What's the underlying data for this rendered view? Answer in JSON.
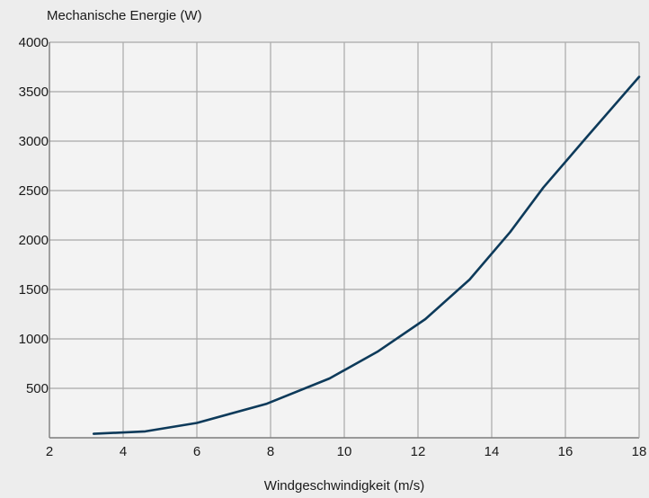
{
  "chart_data": {
    "type": "line",
    "title": "",
    "ylabel": "Mechanische Energie (W)",
    "xlabel": "Windgeschwindigkeit (m/s)",
    "xlim": [
      2,
      18
    ],
    "ylim": [
      0,
      4000
    ],
    "x_ticks": [
      2,
      4,
      6,
      8,
      10,
      12,
      14,
      16,
      18
    ],
    "y_ticks": [
      500,
      1000,
      1500,
      2000,
      2500,
      3000,
      3500,
      4000
    ],
    "grid": true,
    "legend": "none",
    "series": [
      {
        "color": "#0d3a5a",
        "points": [
          [
            3.2,
            40
          ],
          [
            4.6,
            65
          ],
          [
            6.0,
            150
          ],
          [
            7.9,
            345
          ],
          [
            9.6,
            600
          ],
          [
            10.9,
            870
          ],
          [
            12.2,
            1200
          ],
          [
            13.4,
            1600
          ],
          [
            14.5,
            2080
          ],
          [
            15.4,
            2530
          ],
          [
            16.6,
            3050
          ],
          [
            18.0,
            3650
          ]
        ]
      }
    ]
  }
}
